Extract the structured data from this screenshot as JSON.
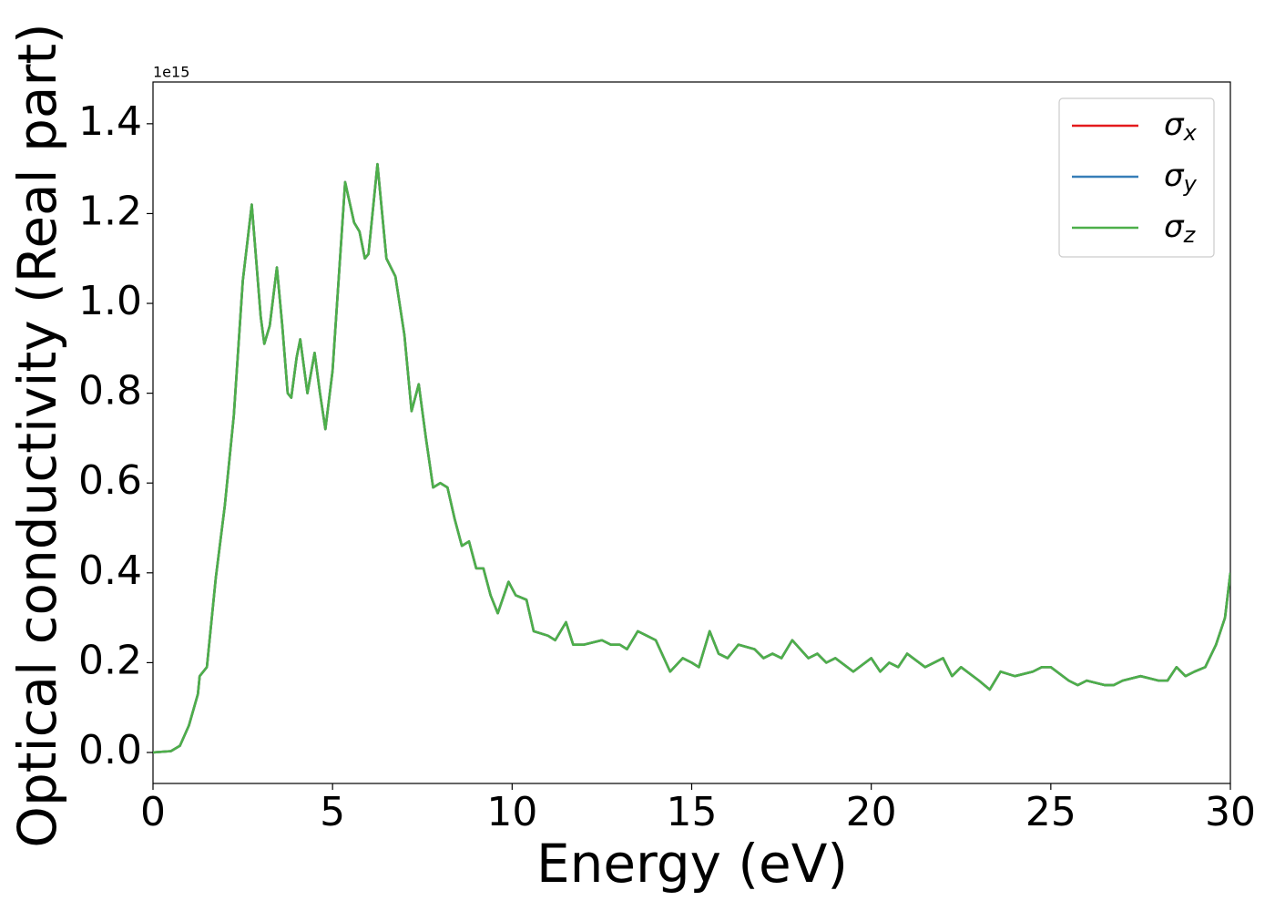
{
  "chart_data": {
    "type": "line",
    "x_label": "Energy (eV)",
    "y_label": "Optical conductivity (Real part)",
    "y_offset_label": "1e15",
    "x": [
      0,
      0.5,
      0.75,
      1.0,
      1.25,
      1.3,
      1.5,
      1.75,
      2.0,
      2.25,
      2.5,
      2.75,
      3.0,
      3.1,
      3.25,
      3.45,
      3.6,
      3.75,
      3.85,
      4.0,
      4.1,
      4.3,
      4.5,
      4.65,
      4.8,
      5.0,
      5.1,
      5.35,
      5.6,
      5.75,
      5.9,
      6.0,
      6.25,
      6.5,
      6.75,
      7.0,
      7.2,
      7.4,
      7.6,
      7.8,
      8.0,
      8.2,
      8.4,
      8.6,
      8.8,
      9.0,
      9.2,
      9.4,
      9.6,
      9.9,
      10.1,
      10.4,
      10.6,
      11.0,
      11.2,
      11.5,
      11.7,
      12.0,
      12.5,
      12.75,
      13.0,
      13.2,
      13.5,
      13.75,
      14.0,
      14.4,
      14.75,
      15.0,
      15.2,
      15.5,
      15.75,
      16.0,
      16.3,
      16.75,
      17.0,
      17.25,
      17.5,
      17.8,
      18.25,
      18.5,
      18.75,
      19.0,
      19.5,
      20.0,
      20.25,
      20.5,
      20.75,
      21.0,
      21.5,
      22.0,
      22.25,
      22.5,
      23.0,
      23.3,
      23.6,
      24.0,
      24.5,
      24.75,
      25.0,
      25.5,
      25.75,
      26.0,
      26.5,
      26.75,
      27.0,
      27.5,
      28.0,
      28.25,
      28.5,
      28.75,
      29.0,
      29.3,
      29.6,
      29.85,
      30.0
    ],
    "series": [
      {
        "name": "σx",
        "color": "#e41a1c",
        "values": [
          0,
          0.003,
          0.015,
          0.06,
          0.13,
          0.17,
          0.19,
          0.39,
          0.55,
          0.75,
          1.05,
          1.22,
          0.97,
          0.91,
          0.95,
          1.08,
          0.95,
          0.8,
          0.79,
          0.88,
          0.92,
          0.8,
          0.89,
          0.8,
          0.72,
          0.85,
          0.97,
          1.27,
          1.18,
          1.16,
          1.1,
          1.11,
          1.31,
          1.1,
          1.06,
          0.93,
          0.76,
          0.82,
          0.7,
          0.59,
          0.6,
          0.59,
          0.52,
          0.46,
          0.47,
          0.41,
          0.41,
          0.35,
          0.31,
          0.38,
          0.35,
          0.34,
          0.27,
          0.26,
          0.25,
          0.29,
          0.24,
          0.24,
          0.25,
          0.24,
          0.24,
          0.23,
          0.27,
          0.26,
          0.25,
          0.18,
          0.21,
          0.2,
          0.19,
          0.27,
          0.22,
          0.21,
          0.24,
          0.23,
          0.21,
          0.22,
          0.21,
          0.25,
          0.21,
          0.22,
          0.2,
          0.21,
          0.18,
          0.21,
          0.18,
          0.2,
          0.19,
          0.22,
          0.19,
          0.21,
          0.17,
          0.19,
          0.16,
          0.14,
          0.18,
          0.17,
          0.18,
          0.19,
          0.19,
          0.16,
          0.15,
          0.16,
          0.15,
          0.15,
          0.16,
          0.17,
          0.16,
          0.16,
          0.19,
          0.17,
          0.18,
          0.19,
          0.24,
          0.3,
          0.4
        ]
      },
      {
        "name": "σy",
        "color": "#377eb8",
        "values": [
          0,
          0.003,
          0.015,
          0.06,
          0.13,
          0.17,
          0.19,
          0.39,
          0.55,
          0.75,
          1.05,
          1.22,
          0.97,
          0.91,
          0.95,
          1.08,
          0.95,
          0.8,
          0.79,
          0.88,
          0.92,
          0.8,
          0.89,
          0.8,
          0.72,
          0.85,
          0.97,
          1.27,
          1.18,
          1.16,
          1.1,
          1.11,
          1.31,
          1.1,
          1.06,
          0.93,
          0.76,
          0.82,
          0.7,
          0.59,
          0.6,
          0.59,
          0.52,
          0.46,
          0.47,
          0.41,
          0.41,
          0.35,
          0.31,
          0.38,
          0.35,
          0.34,
          0.27,
          0.26,
          0.25,
          0.29,
          0.24,
          0.24,
          0.25,
          0.24,
          0.24,
          0.23,
          0.27,
          0.26,
          0.25,
          0.18,
          0.21,
          0.2,
          0.19,
          0.27,
          0.22,
          0.21,
          0.24,
          0.23,
          0.21,
          0.22,
          0.21,
          0.25,
          0.21,
          0.22,
          0.2,
          0.21,
          0.18,
          0.21,
          0.18,
          0.2,
          0.19,
          0.22,
          0.19,
          0.21,
          0.17,
          0.19,
          0.16,
          0.14,
          0.18,
          0.17,
          0.18,
          0.19,
          0.19,
          0.16,
          0.15,
          0.16,
          0.15,
          0.15,
          0.16,
          0.17,
          0.16,
          0.16,
          0.19,
          0.17,
          0.18,
          0.19,
          0.24,
          0.3,
          0.4
        ]
      },
      {
        "name": "σz",
        "color": "#4daf4a",
        "values": [
          0,
          0.003,
          0.015,
          0.06,
          0.13,
          0.17,
          0.19,
          0.39,
          0.55,
          0.75,
          1.05,
          1.22,
          0.97,
          0.91,
          0.95,
          1.08,
          0.95,
          0.8,
          0.79,
          0.88,
          0.92,
          0.8,
          0.89,
          0.8,
          0.72,
          0.85,
          0.97,
          1.27,
          1.18,
          1.16,
          1.1,
          1.11,
          1.31,
          1.1,
          1.06,
          0.93,
          0.76,
          0.82,
          0.7,
          0.59,
          0.6,
          0.59,
          0.52,
          0.46,
          0.47,
          0.41,
          0.41,
          0.35,
          0.31,
          0.38,
          0.35,
          0.34,
          0.27,
          0.26,
          0.25,
          0.29,
          0.24,
          0.24,
          0.25,
          0.24,
          0.24,
          0.23,
          0.27,
          0.26,
          0.25,
          0.18,
          0.21,
          0.2,
          0.19,
          0.27,
          0.22,
          0.21,
          0.24,
          0.23,
          0.21,
          0.22,
          0.21,
          0.25,
          0.21,
          0.22,
          0.2,
          0.21,
          0.18,
          0.21,
          0.18,
          0.2,
          0.19,
          0.22,
          0.19,
          0.21,
          0.17,
          0.19,
          0.16,
          0.14,
          0.18,
          0.17,
          0.18,
          0.19,
          0.19,
          0.16,
          0.15,
          0.16,
          0.15,
          0.15,
          0.16,
          0.17,
          0.16,
          0.16,
          0.19,
          0.17,
          0.18,
          0.19,
          0.24,
          0.3,
          0.4
        ]
      }
    ],
    "xlim": [
      0,
      30
    ],
    "xticks": [
      0,
      5,
      10,
      15,
      20,
      25,
      30
    ],
    "ylim": [
      -0.069,
      1.493
    ],
    "yticks": [
      {
        "value": 0,
        "label": "0.0"
      },
      {
        "value": 0.2,
        "label": "0.2"
      },
      {
        "value": 0.4,
        "label": "0.4"
      },
      {
        "value": 0.6,
        "label": "0.6"
      },
      {
        "value": 0.8,
        "label": "0.8"
      },
      {
        "value": 1.0,
        "label": "1.0"
      },
      {
        "value": 1.2,
        "label": "1.2"
      },
      {
        "value": 1.4,
        "label": "1.4"
      }
    ],
    "grid": false,
    "legend": "upper right"
  }
}
